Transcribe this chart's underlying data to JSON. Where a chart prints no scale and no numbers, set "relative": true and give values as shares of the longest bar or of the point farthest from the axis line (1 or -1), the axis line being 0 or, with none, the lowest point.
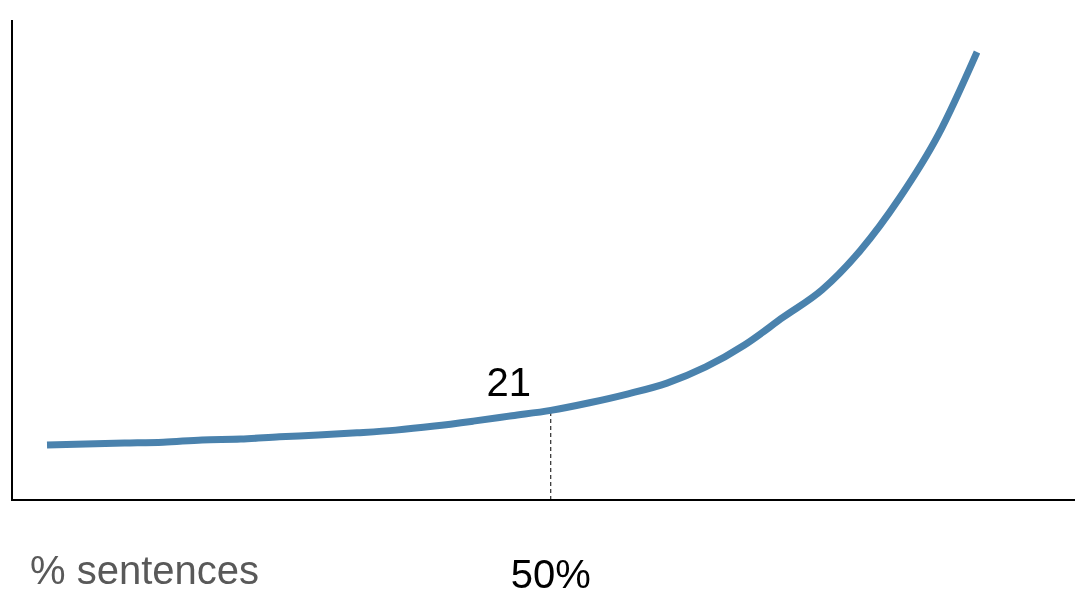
{
  "chart_data": {
    "type": "line",
    "relative": true,
    "xlabel": "% sentences",
    "categories": [
      null,
      null,
      null,
      null,
      null,
      null,
      null,
      null,
      null,
      null,
      null,
      null,
      null,
      null,
      null,
      null,
      null,
      null,
      null,
      null,
      null,
      null,
      null,
      null,
      null
    ],
    "series": [
      {
        "color": "#4a82ad",
        "values": [
          0.123,
          0.125,
          0.127,
          0.129,
          0.134,
          0.136,
          0.141,
          0.145,
          0.15,
          0.156,
          0.165,
          0.176,
          0.188,
          0.2,
          0.217,
          0.237,
          0.261,
          0.297,
          0.346,
          0.408,
          0.469,
          0.558,
          0.674,
          0.815,
          1
        ]
      }
    ],
    "annotations": [
      {
        "text": "21",
        "y": 0.2
      },
      "50%"
    ],
    "line_style": "solid"
  }
}
